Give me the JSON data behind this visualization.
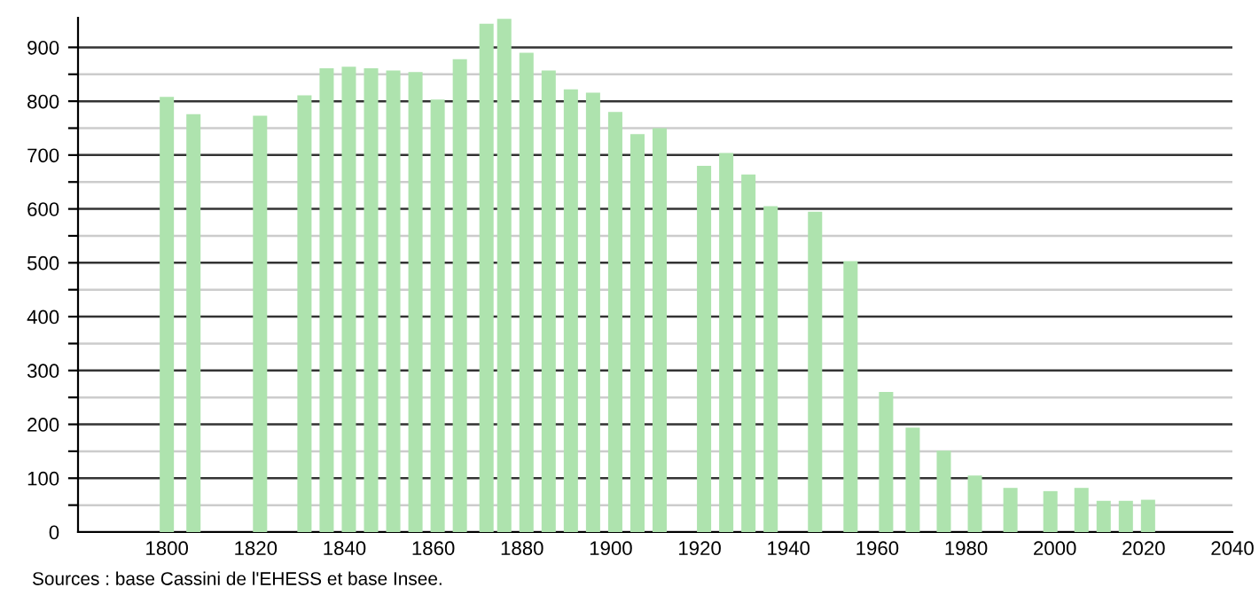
{
  "chart_data": {
    "type": "bar",
    "color": "#aee3ae",
    "x": [
      1800,
      1806,
      1821,
      1831,
      1836,
      1841,
      1846,
      1851,
      1856,
      1861,
      1866,
      1872,
      1876,
      1881,
      1886,
      1891,
      1896,
      1901,
      1906,
      1911,
      1921,
      1926,
      1931,
      1936,
      1946,
      1954,
      1962,
      1968,
      1975,
      1982,
      1990,
      1999,
      2006,
      2011,
      2016,
      2021
    ],
    "values": [
      808,
      776,
      773,
      811,
      861,
      864,
      861,
      857,
      854,
      803,
      878,
      944,
      953,
      890,
      857,
      822,
      816,
      780,
      739,
      750,
      680,
      704,
      664,
      605,
      595,
      503,
      260,
      194,
      151,
      105,
      82,
      76,
      82,
      58,
      58,
      60
    ],
    "xlim": [
      1780,
      2040
    ],
    "xticks": [
      1800,
      1820,
      1840,
      1860,
      1880,
      1900,
      1920,
      1940,
      1960,
      1980,
      2000,
      2020,
      2040
    ],
    "ylim": [
      0,
      955
    ],
    "yticks": [
      0,
      {
        "value": 50,
        "label": null
      },
      100,
      {
        "value": 150,
        "label": null
      },
      200,
      {
        "value": 250,
        "label": null
      },
      300,
      {
        "value": 350,
        "label": null
      },
      400,
      {
        "value": 450,
        "label": null
      },
      500,
      {
        "value": 550,
        "label": null
      },
      600,
      {
        "value": 650,
        "label": null
      },
      700,
      {
        "value": 750,
        "label": null
      },
      800,
      {
        "value": 850,
        "label": null
      },
      900
    ],
    "grid": "y",
    "annotations": [
      "Sources : base Cassini de l'EHESS et base Insee."
    ]
  }
}
